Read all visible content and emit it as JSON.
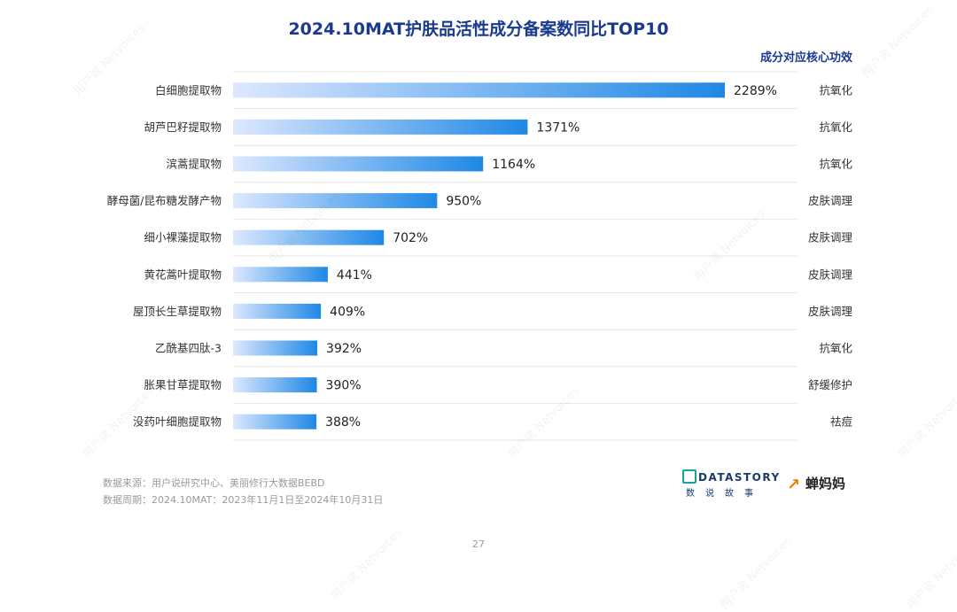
{
  "title": "2024.10MAT护肤品活性成分备案数同比TOP10",
  "effect_header": "成分对应核心功效",
  "footer": {
    "source": "数据来源：用户说研究中心、美丽修行大数据BEBD",
    "period": "数据周期：2024.10MAT：2023年11月1日至2024年10月31日"
  },
  "page_number": "27",
  "logos": {
    "datastory_word": "DATASTORY",
    "datastory_sub": "数说故事",
    "cmm_word": "蝉妈妈"
  },
  "watermark_text": [
    "用户说",
    "Netvoices"
  ],
  "colors": {
    "bar_start": "#dde8ff",
    "bar_end": "#1e88e5",
    "title": "#1a3a8f",
    "separator": "#e6e6e6"
  },
  "chart_data": {
    "type": "bar",
    "orientation": "horizontal",
    "title": "2024.10MAT护肤品活性成分备案数同比TOP10",
    "categories": [
      "白细胞提取物",
      "胡芦巴籽提取物",
      "滨蒿提取物",
      "酵母菌/昆布糖发酵产物",
      "细小裸藻提取物",
      "黄花蒿叶提取物",
      "屋顶长生草提取物",
      "乙酰基四肽-3",
      "胀果甘草提取物",
      "没药叶细胞提取物"
    ],
    "values": [
      2289,
      1371,
      1164,
      950,
      702,
      441,
      409,
      392,
      390,
      388
    ],
    "value_labels": [
      "2289%",
      "1371%",
      "1164%",
      "950%",
      "702%",
      "441%",
      "409%",
      "392%",
      "390%",
      "388%"
    ],
    "effects": [
      "抗氧化",
      "抗氧化",
      "抗氧化",
      "皮肤调理",
      "皮肤调理",
      "皮肤调理",
      "皮肤调理",
      "抗氧化",
      "舒缓修护",
      "祛痘"
    ],
    "unit": "%",
    "xlim": [
      0,
      2289
    ],
    "grid": false,
    "legend": "none"
  }
}
